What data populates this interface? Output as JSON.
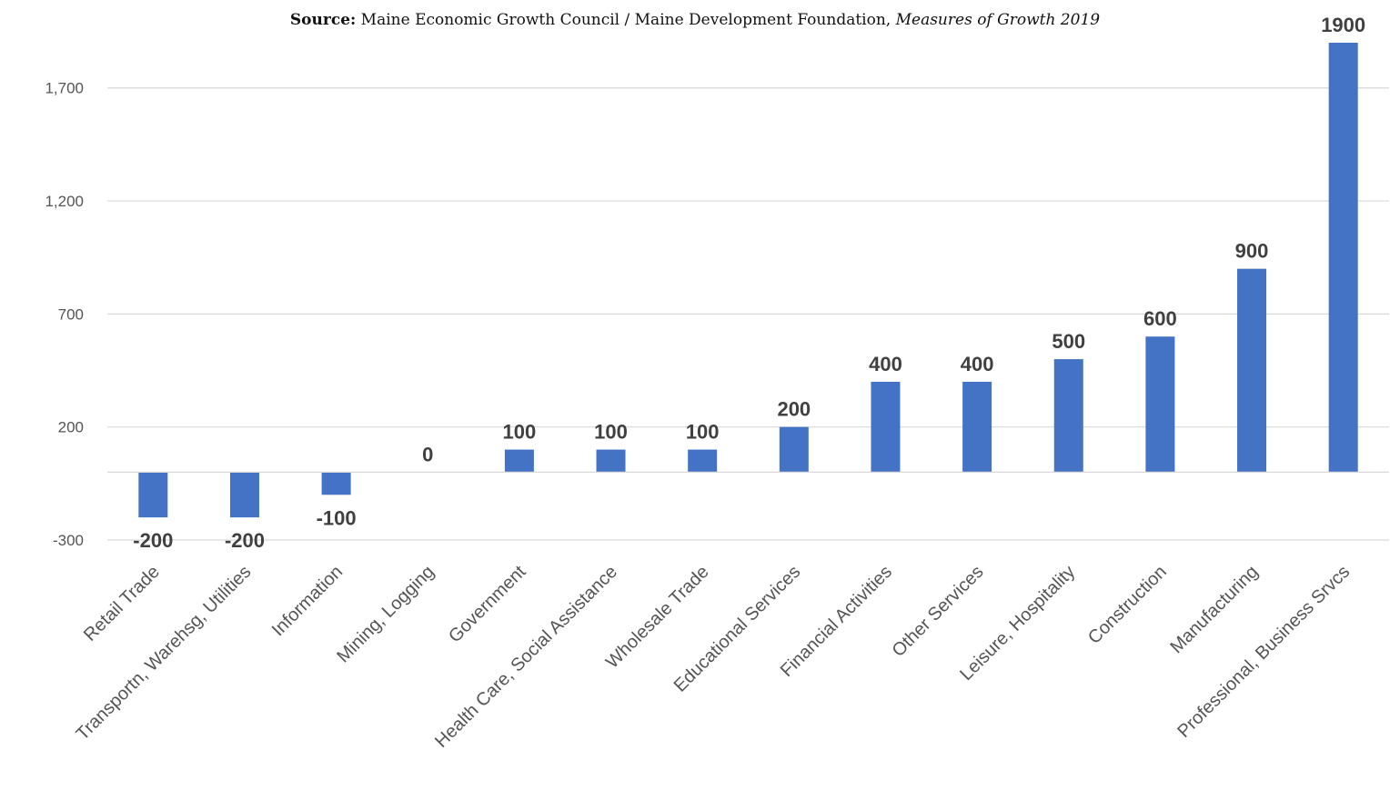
{
  "source": {
    "label": "Source:",
    "text": " Maine Economic Growth Council / Maine Development Foundation, ",
    "publication": "Measures of Growth 2019"
  },
  "chart_data": {
    "type": "bar",
    "title": "",
    "xlabel": "",
    "ylabel": "",
    "categories": [
      "Retail Trade",
      "Transportn, Warehsg, Utilities",
      "Information",
      "Mining, Logging",
      "Government",
      "Health Care, Social Assistance",
      "Wholesale Trade",
      "Educational Services",
      "Financial Activities",
      "Other Services",
      "Leisure, Hospitality",
      "Construction",
      "Manufacturing",
      "Professional, Business Srvcs"
    ],
    "values": [
      -200,
      -200,
      -100,
      0,
      100,
      100,
      100,
      200,
      400,
      400,
      500,
      600,
      900,
      1900
    ],
    "data_labels": [
      "-200",
      "-200",
      "-100",
      "0",
      "100",
      "100",
      "100",
      "200",
      "400",
      "400",
      "500",
      "600",
      "900",
      "1900"
    ],
    "yticks": [
      -300,
      200,
      700,
      1200,
      1700
    ],
    "ytick_labels": [
      "-300",
      "200",
      "700",
      "1,200",
      "1,700"
    ],
    "ylim": [
      -300,
      1900
    ],
    "grid": true,
    "legend": "none",
    "bar_color": "#4472C4"
  }
}
